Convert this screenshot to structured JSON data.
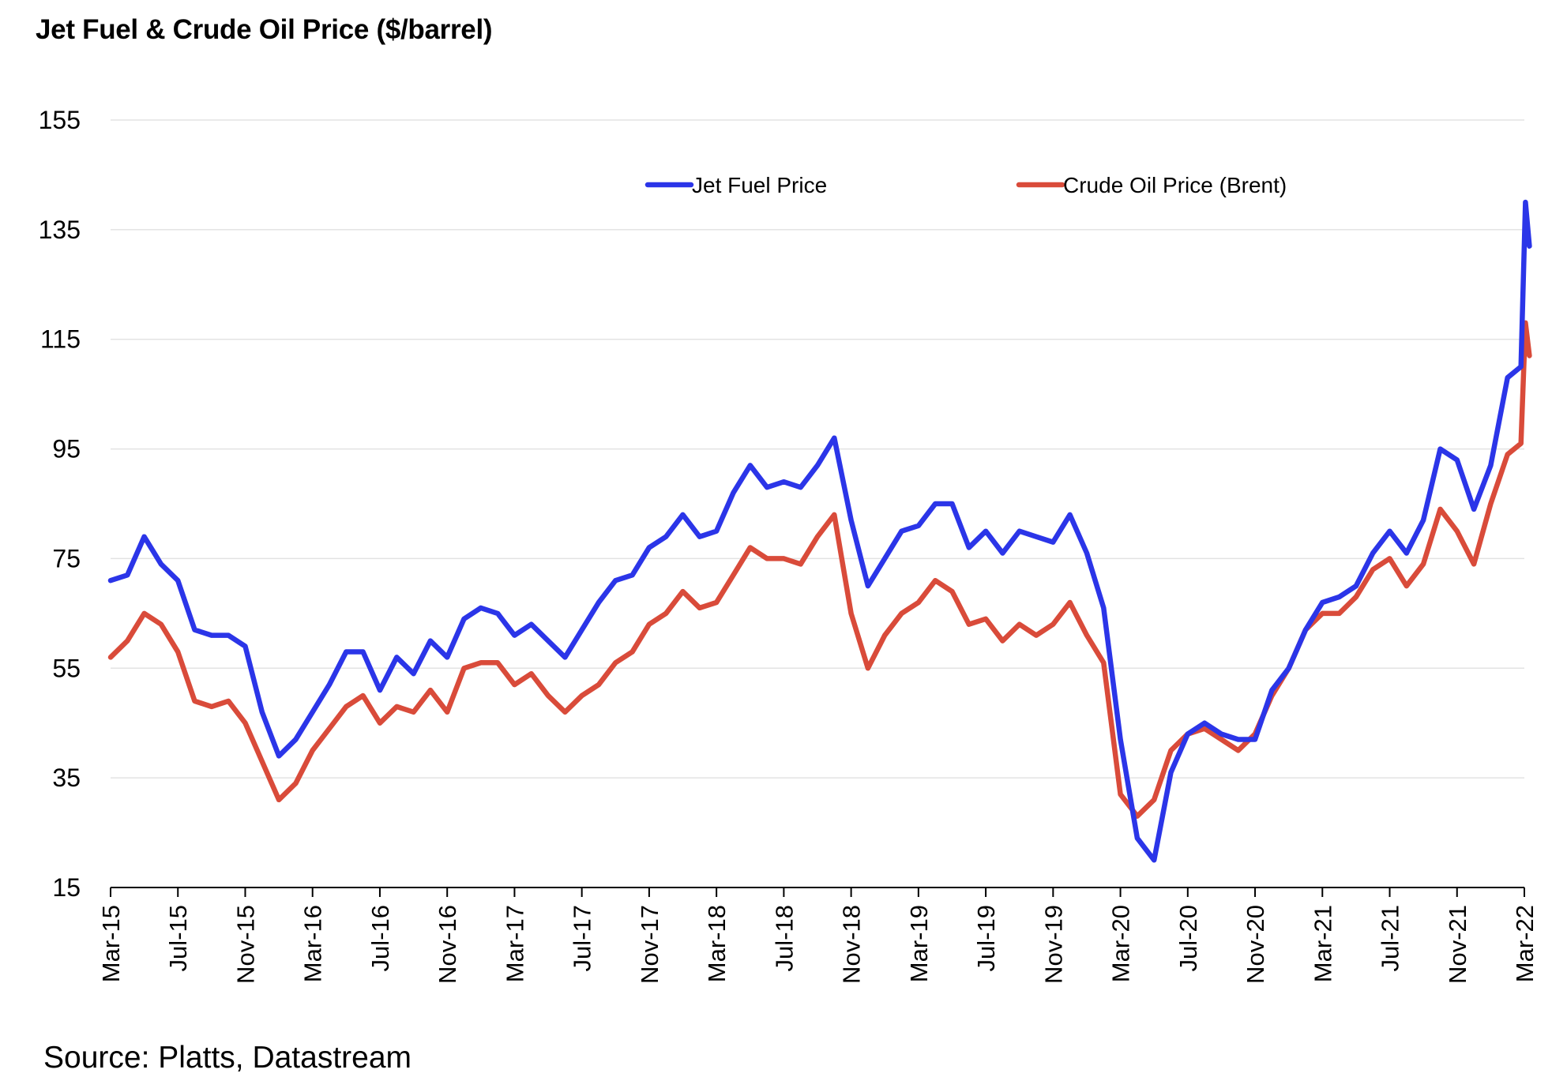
{
  "source_note": "Source: Platts, Datastream",
  "chart_data": {
    "type": "line",
    "title": "Jet Fuel & Crude Oil Price ($/barrel)",
    "xlabel": "",
    "ylabel": "",
    "ylim": [
      15,
      155
    ],
    "y_ticks": [
      15,
      35,
      55,
      75,
      95,
      115,
      135,
      155
    ],
    "x_range": [
      "2015-03",
      "2022-03"
    ],
    "x_ticks": [
      "Mar-15",
      "Jul-15",
      "Nov-15",
      "Mar-16",
      "Jul-16",
      "Nov-16",
      "Mar-17",
      "Jul-17",
      "Nov-17",
      "Mar-18",
      "Jul-18",
      "Nov-18",
      "Mar-19",
      "Jul-19",
      "Nov-19",
      "Mar-20",
      "Jul-20",
      "Nov-20",
      "Mar-21",
      "Jul-21",
      "Nov-21",
      "Mar-22"
    ],
    "grid": "horizontal",
    "legend_position": "top-center",
    "series": [
      {
        "name": "Jet Fuel Price",
        "color": "#2b35e8",
        "points": [
          [
            "2015-03",
            71
          ],
          [
            "2015-04",
            72
          ],
          [
            "2015-05",
            79
          ],
          [
            "2015-06",
            74
          ],
          [
            "2015-07",
            71
          ],
          [
            "2015-08",
            62
          ],
          [
            "2015-09",
            61
          ],
          [
            "2015-10",
            61
          ],
          [
            "2015-11",
            59
          ],
          [
            "2015-12",
            47
          ],
          [
            "2016-01",
            39
          ],
          [
            "2016-02",
            42
          ],
          [
            "2016-03",
            47
          ],
          [
            "2016-04",
            52
          ],
          [
            "2016-05",
            58
          ],
          [
            "2016-06",
            58
          ],
          [
            "2016-07",
            51
          ],
          [
            "2016-08",
            57
          ],
          [
            "2016-09",
            54
          ],
          [
            "2016-10",
            60
          ],
          [
            "2016-11",
            57
          ],
          [
            "2016-12",
            64
          ],
          [
            "2017-01",
            66
          ],
          [
            "2017-02",
            65
          ],
          [
            "2017-03",
            61
          ],
          [
            "2017-04",
            63
          ],
          [
            "2017-05",
            60
          ],
          [
            "2017-06",
            57
          ],
          [
            "2017-07",
            62
          ],
          [
            "2017-08",
            67
          ],
          [
            "2017-09",
            71
          ],
          [
            "2017-10",
            72
          ],
          [
            "2017-11",
            77
          ],
          [
            "2017-12",
            79
          ],
          [
            "2018-01",
            83
          ],
          [
            "2018-02",
            79
          ],
          [
            "2018-03",
            80
          ],
          [
            "2018-04",
            87
          ],
          [
            "2018-05",
            92
          ],
          [
            "2018-06",
            88
          ],
          [
            "2018-07",
            89
          ],
          [
            "2018-08",
            88
          ],
          [
            "2018-09",
            92
          ],
          [
            "2018-10",
            97
          ],
          [
            "2018-11",
            82
          ],
          [
            "2018-12",
            70
          ],
          [
            "2019-01",
            75
          ],
          [
            "2019-02",
            80
          ],
          [
            "2019-03",
            81
          ],
          [
            "2019-04",
            85
          ],
          [
            "2019-05",
            85
          ],
          [
            "2019-06",
            77
          ],
          [
            "2019-07",
            80
          ],
          [
            "2019-08",
            76
          ],
          [
            "2019-09",
            80
          ],
          [
            "2019-10",
            79
          ],
          [
            "2019-11",
            78
          ],
          [
            "2019-12",
            83
          ],
          [
            "2020-01",
            76
          ],
          [
            "2020-02",
            66
          ],
          [
            "2020-03",
            42
          ],
          [
            "2020-04",
            24
          ],
          [
            "2020-05",
            20
          ],
          [
            "2020-06",
            36
          ],
          [
            "2020-07",
            43
          ],
          [
            "2020-08",
            45
          ],
          [
            "2020-09",
            43
          ],
          [
            "2020-10",
            42
          ],
          [
            "2020-11",
            42
          ],
          [
            "2020-12",
            51
          ],
          [
            "2021-01",
            55
          ],
          [
            "2021-02",
            62
          ],
          [
            "2021-03",
            67
          ],
          [
            "2021-04",
            68
          ],
          [
            "2021-05",
            70
          ],
          [
            "2021-06",
            76
          ],
          [
            "2021-07",
            80
          ],
          [
            "2021-08",
            76
          ],
          [
            "2021-09",
            82
          ],
          [
            "2021-10",
            95
          ],
          [
            "2021-11",
            93
          ],
          [
            "2021-12",
            84
          ],
          [
            "2022-01",
            92
          ],
          [
            "2022-02",
            108
          ],
          [
            "2022-02-25",
            110
          ],
          [
            "2022-03-03",
            140
          ],
          [
            "2022-03-10",
            132
          ]
        ]
      },
      {
        "name": "Crude Oil Price (Brent)",
        "color": "#d94b3a",
        "points": [
          [
            "2015-03",
            57
          ],
          [
            "2015-04",
            60
          ],
          [
            "2015-05",
            65
          ],
          [
            "2015-06",
            63
          ],
          [
            "2015-07",
            58
          ],
          [
            "2015-08",
            49
          ],
          [
            "2015-09",
            48
          ],
          [
            "2015-10",
            49
          ],
          [
            "2015-11",
            45
          ],
          [
            "2015-12",
            38
          ],
          [
            "2016-01",
            31
          ],
          [
            "2016-02",
            34
          ],
          [
            "2016-03",
            40
          ],
          [
            "2016-04",
            44
          ],
          [
            "2016-05",
            48
          ],
          [
            "2016-06",
            50
          ],
          [
            "2016-07",
            45
          ],
          [
            "2016-08",
            48
          ],
          [
            "2016-09",
            47
          ],
          [
            "2016-10",
            51
          ],
          [
            "2016-11",
            47
          ],
          [
            "2016-12",
            55
          ],
          [
            "2017-01",
            56
          ],
          [
            "2017-02",
            56
          ],
          [
            "2017-03",
            52
          ],
          [
            "2017-04",
            54
          ],
          [
            "2017-05",
            50
          ],
          [
            "2017-06",
            47
          ],
          [
            "2017-07",
            50
          ],
          [
            "2017-08",
            52
          ],
          [
            "2017-09",
            56
          ],
          [
            "2017-10",
            58
          ],
          [
            "2017-11",
            63
          ],
          [
            "2017-12",
            65
          ],
          [
            "2018-01",
            69
          ],
          [
            "2018-02",
            66
          ],
          [
            "2018-03",
            67
          ],
          [
            "2018-04",
            72
          ],
          [
            "2018-05",
            77
          ],
          [
            "2018-06",
            75
          ],
          [
            "2018-07",
            75
          ],
          [
            "2018-08",
            74
          ],
          [
            "2018-09",
            79
          ],
          [
            "2018-10",
            83
          ],
          [
            "2018-11",
            65
          ],
          [
            "2018-12",
            55
          ],
          [
            "2019-01",
            61
          ],
          [
            "2019-02",
            65
          ],
          [
            "2019-03",
            67
          ],
          [
            "2019-04",
            71
          ],
          [
            "2019-05",
            69
          ],
          [
            "2019-06",
            63
          ],
          [
            "2019-07",
            64
          ],
          [
            "2019-08",
            60
          ],
          [
            "2019-09",
            63
          ],
          [
            "2019-10",
            61
          ],
          [
            "2019-11",
            63
          ],
          [
            "2019-12",
            67
          ],
          [
            "2020-01",
            61
          ],
          [
            "2020-02",
            56
          ],
          [
            "2020-03",
            32
          ],
          [
            "2020-04",
            28
          ],
          [
            "2020-05",
            31
          ],
          [
            "2020-06",
            40
          ],
          [
            "2020-07",
            43
          ],
          [
            "2020-08",
            44
          ],
          [
            "2020-09",
            42
          ],
          [
            "2020-10",
            40
          ],
          [
            "2020-11",
            43
          ],
          [
            "2020-12",
            50
          ],
          [
            "2021-01",
            55
          ],
          [
            "2021-02",
            62
          ],
          [
            "2021-03",
            65
          ],
          [
            "2021-04",
            65
          ],
          [
            "2021-05",
            68
          ],
          [
            "2021-06",
            73
          ],
          [
            "2021-07",
            75
          ],
          [
            "2021-08",
            70
          ],
          [
            "2021-09",
            74
          ],
          [
            "2021-10",
            84
          ],
          [
            "2021-11",
            80
          ],
          [
            "2021-12",
            74
          ],
          [
            "2022-01",
            85
          ],
          [
            "2022-02",
            94
          ],
          [
            "2022-02-25",
            96
          ],
          [
            "2022-03-03",
            118
          ],
          [
            "2022-03-10",
            112
          ]
        ]
      }
    ]
  }
}
